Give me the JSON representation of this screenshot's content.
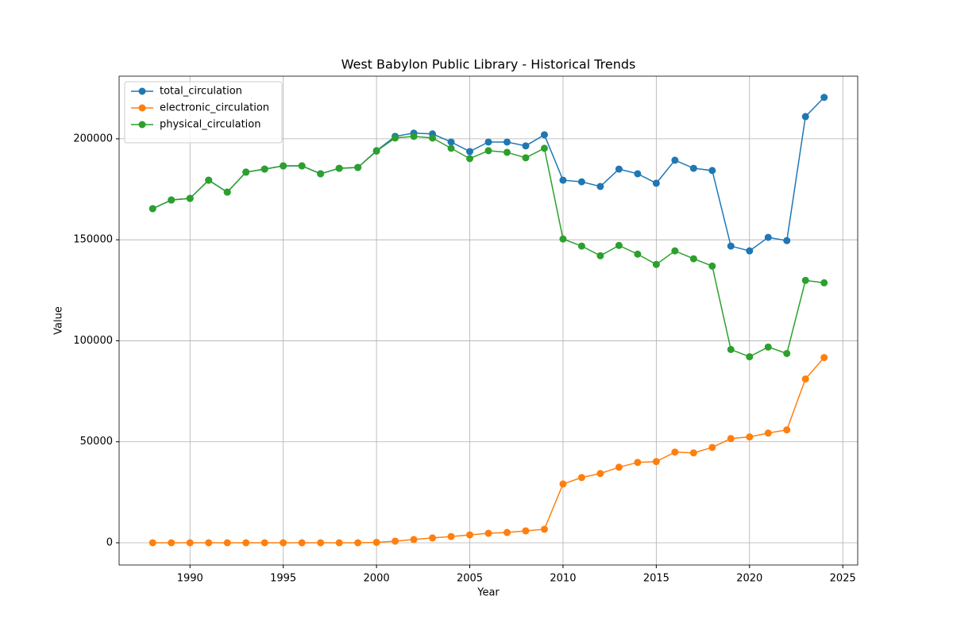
{
  "chart_data": {
    "type": "line",
    "title": "West Babylon Public Library - Historical Trends",
    "xlabel": "Year",
    "ylabel": "Value",
    "x": [
      1988,
      1989,
      1990,
      1991,
      1992,
      1993,
      1994,
      1995,
      1996,
      1997,
      1998,
      1999,
      2000,
      2001,
      2002,
      2003,
      2004,
      2005,
      2006,
      2007,
      2008,
      2009,
      2010,
      2011,
      2012,
      2013,
      2014,
      2015,
      2016,
      2017,
      2018,
      2019,
      2020,
      2021,
      2022,
      2023,
      2024
    ],
    "series": [
      {
        "name": "total_circulation",
        "color": "#1f77b4",
        "values": [
          165400,
          169700,
          170500,
          179500,
          173600,
          183500,
          185000,
          186600,
          186600,
          182700,
          185400,
          185800,
          194100,
          201200,
          202800,
          202400,
          198400,
          193700,
          198400,
          198400,
          196500,
          202000,
          179500,
          178700,
          176400,
          185000,
          182700,
          178000,
          189400,
          185400,
          184300,
          146900,
          144500,
          151200,
          149600,
          211000,
          220500
        ]
      },
      {
        "name": "electronic_circulation",
        "color": "#ff7f0e",
        "values": [
          0,
          0,
          0,
          0,
          0,
          0,
          0,
          0,
          0,
          0,
          0,
          0,
          200,
          800,
          1600,
          2400,
          3100,
          3900,
          4700,
          5100,
          5900,
          6700,
          29100,
          32300,
          34300,
          37400,
          39800,
          40200,
          44900,
          44500,
          47200,
          51600,
          52400,
          54300,
          55900,
          81100,
          91700
        ]
      },
      {
        "name": "physical_circulation",
        "color": "#2ca02c",
        "values": [
          165400,
          169700,
          170500,
          179500,
          173600,
          183500,
          185000,
          186600,
          186600,
          182700,
          185400,
          185800,
          193900,
          200400,
          201200,
          200400,
          195300,
          190200,
          194100,
          193300,
          190600,
          195300,
          150400,
          146900,
          142100,
          147200,
          142900,
          137800,
          144500,
          140600,
          137000,
          95700,
          92100,
          96900,
          93700,
          129900,
          128700
        ]
      }
    ],
    "xlim": [
      1986.2,
      2025.8
    ],
    "xticks": [
      1990,
      1995,
      2000,
      2005,
      2010,
      2015,
      2020,
      2025
    ],
    "ylim": [
      -11000,
      231000
    ],
    "yticks": [
      0,
      50000,
      100000,
      150000,
      200000
    ],
    "grid": true,
    "legend": "upper-left"
  }
}
